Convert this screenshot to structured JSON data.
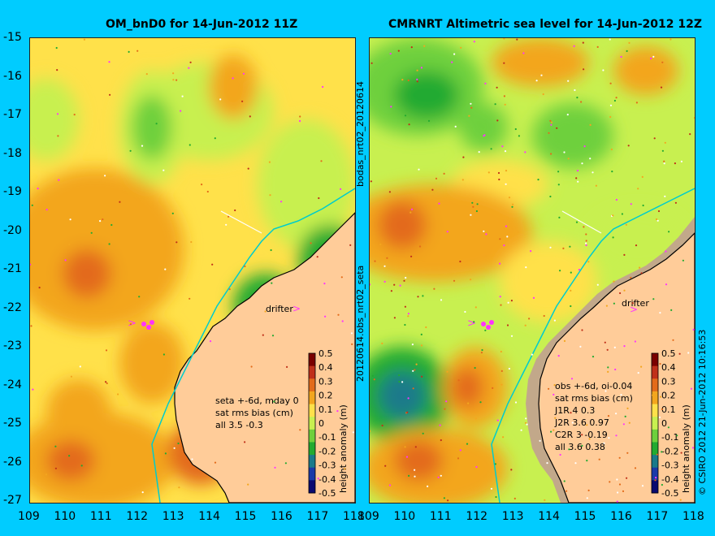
{
  "panels": [
    {
      "id": "left",
      "title": "OM_bnD0 for 14-Jun-2012 11Z",
      "annotation_lines": [
        "seta +-6d, mday 0",
        "sat rms bias (cm)",
        "all 3.5 -0.3"
      ],
      "drifter_label": "drifter",
      "colorbar_title": "height anomaly (m)"
    },
    {
      "id": "right",
      "title": "CMRNRT Altimetric sea level  for 14-Jun-2012 12Z",
      "annotation_lines": [
        "obs +-6d, oi-0.04",
        "sat rms bias (cm)",
        "J1R   4  0.3",
        "J2R   3.6  0.97",
        "C2R    3  -0.19",
        "all 3.6  0.38"
      ],
      "drifter_label": "drifter",
      "colorbar_title": "height anomaly (m)"
    }
  ],
  "y_ticks": [
    "-15",
    "-16",
    "-17",
    "-18",
    "-19",
    "-20",
    "-21",
    "-22",
    "-23",
    "-24",
    "-25",
    "-26",
    "-27"
  ],
  "x_ticks": [
    "109",
    "110",
    "111",
    "112",
    "113",
    "114",
    "115",
    "116",
    "117",
    "118"
  ],
  "colorbar_ticks": [
    "0.5",
    "0.4",
    "0.3",
    "0.2",
    "0.1",
    "0",
    "-0.1",
    "-0.2",
    "-0.3",
    "-0.4",
    "-0.5"
  ],
  "middle_vertical_text": "20120614.obs_nrt02_seta",
  "middle_vertical_text_top": "bodas_nrt02_20120614",
  "right_vertical_text": "© CSIRO 2012   21-Jun-2012 10:16:53",
  "colors": {
    "background": "#00ccff",
    "land": "#ffcc99",
    "coastline": "#000000",
    "shelf_line": "#00cccc",
    "drifter": "#ff33ff",
    "colorbar": [
      "#7a0000",
      "#c0301a",
      "#e36b1a",
      "#f3a61e",
      "#ffe14a",
      "#c8f050",
      "#6ed03c",
      "#22aa30",
      "#1a7a8a",
      "#1a3aa8",
      "#0a0a70"
    ]
  }
}
